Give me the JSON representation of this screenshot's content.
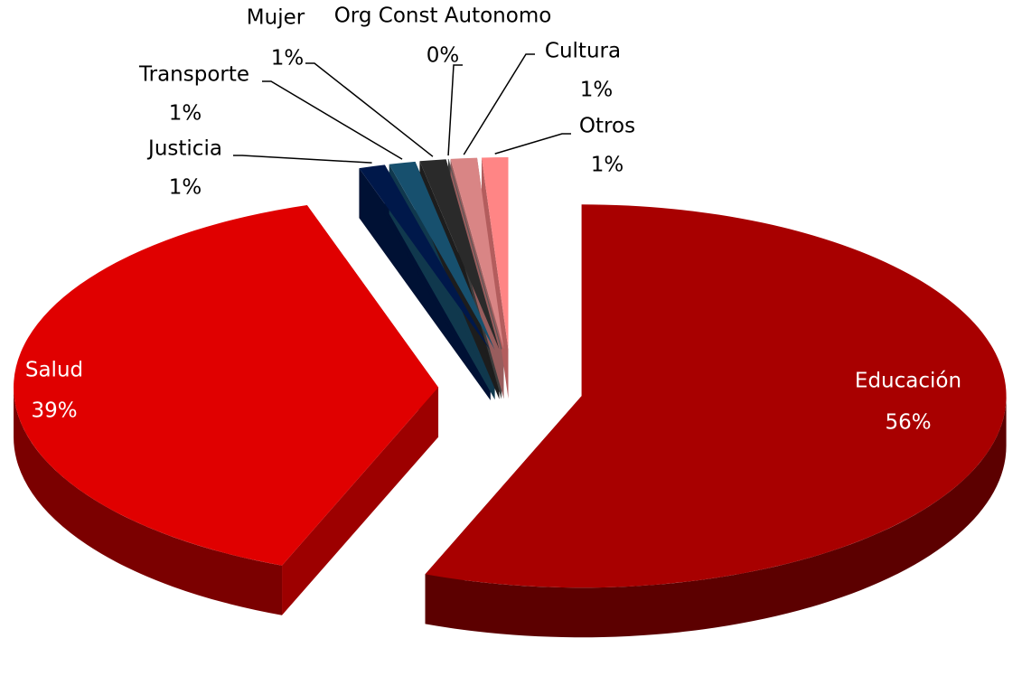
{
  "chart_data": {
    "type": "pie",
    "categories": [
      "Educación",
      "Salud",
      "Justicia",
      "Transporte",
      "Mujer",
      "Org Const Autonomo",
      "Cultura",
      "Otros"
    ],
    "values": [
      56,
      39,
      1,
      1,
      1,
      0,
      1,
      1
    ],
    "value_labels": [
      "56%",
      "39%",
      "1%",
      "1%",
      "1%",
      "0%",
      "1%",
      "1%"
    ],
    "colors": [
      "#a80000",
      "#e00000",
      "#00184a",
      "#17506e",
      "#2a2a2a",
      "#555555",
      "#d98585",
      "#ff8585"
    ]
  }
}
